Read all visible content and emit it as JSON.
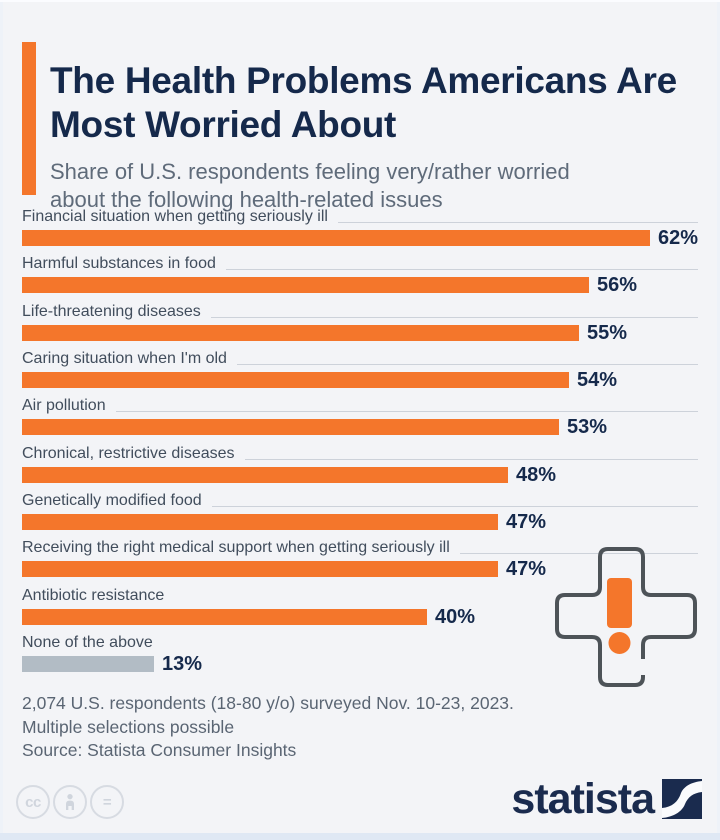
{
  "header": {
    "title": "The Health Problems Americans Are Most Worried About",
    "subtitle": "Share of U.S. respondents feeling very/rather worried about the following health-related issues"
  },
  "chart_data": {
    "type": "bar",
    "orientation": "horizontal",
    "unit": "%",
    "xlim": [
      0,
      62
    ],
    "bar_color": "#f4762b",
    "muted_bar_color": "#b2bcc5",
    "value_suffix": "%",
    "categories": [
      "Financial situation when getting seriously ill",
      "Harmful substances in food",
      "Life-threatening diseases",
      "Caring situation when I'm old",
      "Air pollution",
      "Chronical, restrictive diseases",
      "Genetically modified food",
      "Receiving the right medical support when getting seriously ill",
      "Antibiotic resistance",
      "None of the above"
    ],
    "values": [
      62,
      56,
      55,
      54,
      53,
      48,
      47,
      47,
      40,
      13
    ],
    "rows": [
      {
        "label": "Financial situation when getting seriously ill",
        "value": 62,
        "display": "62%",
        "muted": false,
        "rule": true
      },
      {
        "label": "Harmful substances in food",
        "value": 56,
        "display": "56%",
        "muted": false,
        "rule": true
      },
      {
        "label": "Life-threatening diseases",
        "value": 55,
        "display": "55%",
        "muted": false,
        "rule": true
      },
      {
        "label": "Caring situation when I'm old",
        "value": 54,
        "display": "54%",
        "muted": false,
        "rule": true
      },
      {
        "label": "Air pollution",
        "value": 53,
        "display": "53%",
        "muted": false,
        "rule": true
      },
      {
        "label": "Chronical, restrictive diseases",
        "value": 48,
        "display": "48%",
        "muted": false,
        "rule": true
      },
      {
        "label": "Genetically modified food",
        "value": 47,
        "display": "47%",
        "muted": false,
        "rule": true
      },
      {
        "label": "Receiving the right medical support when getting seriously ill",
        "value": 47,
        "display": "47%",
        "muted": false,
        "rule": true
      },
      {
        "label": "Antibiotic resistance",
        "value": 40,
        "display": "40%",
        "muted": false,
        "rule": false
      },
      {
        "label": "None of the above",
        "value": 13,
        "display": "13%",
        "muted": true,
        "rule": false
      }
    ]
  },
  "decoration": {
    "alert_cross_icon": "medical-cross-with-exclamation",
    "cross_stroke_color": "#4d5358",
    "exclamation_color": "#f4762b"
  },
  "footer": {
    "line1": "2,074 U.S. respondents (18-80 y/o) surveyed Nov. 10-23, 2023.",
    "line2": "Multiple selections possible",
    "line3": "Source: Statista Consumer Insights"
  },
  "branding": {
    "logo_text": "statista",
    "logo_color": "#1a2b4e",
    "license_icons": [
      {
        "name": "cc-icon",
        "glyph": "cc"
      },
      {
        "name": "attribution-person-icon",
        "glyph": "person"
      },
      {
        "name": "no-derivatives-icon",
        "glyph": "="
      }
    ]
  },
  "colors": {
    "background": "#f3f4f7",
    "title": "#15294b",
    "subtitle": "#5f6b7a",
    "label": "#414d5c",
    "leader_rule": "#cdd2da",
    "footer_text": "#5a6573"
  }
}
